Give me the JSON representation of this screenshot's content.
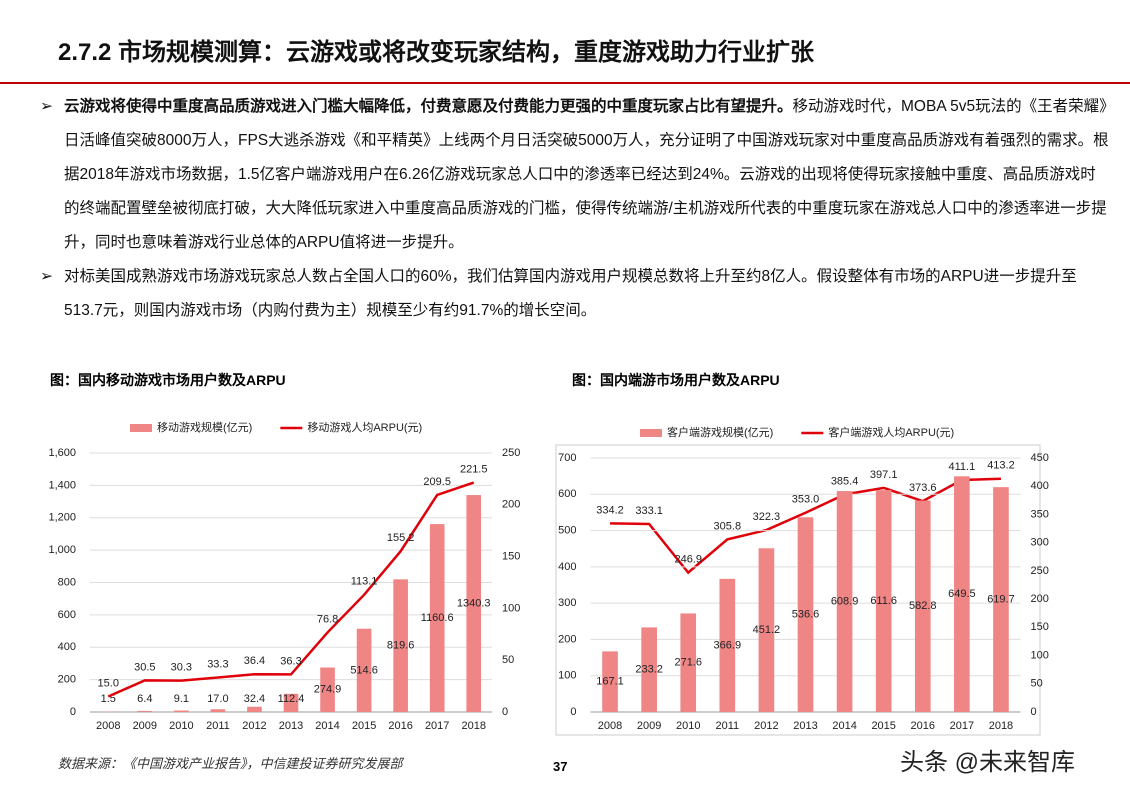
{
  "header": {
    "title": "2.7.2 市场规模测算：云游戏或将改变玩家结构，重度游戏助力行业扩张"
  },
  "bullets": [
    {
      "bold": "云游戏将使得中重度高品质游戏进入门槛大幅降低，付费意愿及付费能力更强的中重度玩家占比有望提升。",
      "text": "移动游戏时代，MOBA 5v5玩法的《王者荣耀》日活峰值突破8000万人，FPS大逃杀游戏《和平精英》上线两个月日活突破5000万人，充分证明了中国游戏玩家对中重度高品质游戏有着强烈的需求。根据2018年游戏市场数据，1.5亿客户端游戏用户在6.26亿游戏玩家总人口中的渗透率已经达到24%。云游戏的出现将使得玩家接触中重度、高品质游戏时的终端配置壁垒被彻底打破，大大降低玩家进入中重度高品质游戏的门槛，使得传统端游/主机游戏所代表的中重度玩家在游戏总人口中的渗透率进一步提升，同时也意味着游戏行业总体的ARPU值将进一步提升。"
    },
    {
      "text": "对标美国成熟游戏市场游戏玩家总人数占全国人口的60%，我们估算国内游戏用户规模总数将上升至约8亿人。假设整体有市场的ARPU进一步提升至513.7元，则国内游戏市场（内购付费为主）规模至少有约91.7%的增长空间。"
    }
  ],
  "chart_data": [
    {
      "type": "bar-line",
      "title": "图：国内移动游戏市场用户数及ARPU",
      "categories": [
        "2008",
        "2009",
        "2010",
        "2011",
        "2012",
        "2013",
        "2014",
        "2015",
        "2016",
        "2017",
        "2018"
      ],
      "series": [
        {
          "name": "移动游戏规模(亿元)",
          "type": "bar",
          "color": "#f08585",
          "values": [
            1.5,
            6.4,
            9.1,
            17.0,
            32.4,
            112.4,
            274.9,
            514.6,
            819.6,
            1160.6,
            1340.3
          ],
          "value_labels": [
            "1.5",
            "6.4",
            "9.1",
            "17.0",
            "32.4",
            "112.4",
            "274.9",
            "514.6",
            "819.6",
            "1160.6",
            "1340.3"
          ]
        },
        {
          "name": "移动游戏人均ARPU(元)",
          "type": "line",
          "axis": "y2",
          "color": "#e0000a",
          "values": [
            15.0,
            30.5,
            30.3,
            33.3,
            36.4,
            36.3,
            76.8,
            113.1,
            155.2,
            209.5,
            221.5
          ],
          "value_labels": [
            "15.0",
            "30.5",
            "30.3",
            "33.3",
            "36.4",
            "36.3",
            "76.8",
            "113.1",
            "155.2",
            "209.5",
            "221.5"
          ]
        }
      ],
      "ylim": [
        0,
        1600
      ],
      "yticks": [
        0,
        200,
        400,
        600,
        800,
        {
          "value": 1000,
          "label": "1,000"
        },
        {
          "value": 1200,
          "label": "1,200"
        },
        {
          "value": 1400,
          "label": "1,400"
        },
        {
          "value": 1600,
          "label": "1,600"
        }
      ],
      "y2lim": [
        0,
        250
      ],
      "y2ticks": [
        0,
        50,
        100,
        150,
        200,
        250
      ],
      "grid": true
    },
    {
      "type": "bar-line",
      "title": "图：国内端游市场用户数及ARPU",
      "categories": [
        "2008",
        "2009",
        "2010",
        "2011",
        "2012",
        "2013",
        "2014",
        "2015",
        "2016",
        "2017",
        "2018"
      ],
      "series": [
        {
          "name": "客户端游戏规模(亿元)",
          "type": "bar",
          "color": "#f08585",
          "values": [
            167.1,
            233.2,
            271.6,
            366.9,
            451.2,
            536.6,
            608.9,
            611.6,
            582.8,
            649.5,
            619.7
          ],
          "value_labels": [
            "167.1",
            "233.2",
            "271.6",
            "366.9",
            "451.2",
            "536.6",
            "608.9",
            "611.6",
            "582.8",
            "649.5",
            "619.7"
          ]
        },
        {
          "name": "客户端游戏人均ARPU(元)",
          "type": "line",
          "axis": "y2",
          "color": "#e0000a",
          "values": [
            334.2,
            333.1,
            246.9,
            305.8,
            322.3,
            353.0,
            385.4,
            397.1,
            373.6,
            411.1,
            413.2
          ],
          "value_labels": [
            "334.2",
            "333.1",
            "246.9",
            "305.8",
            "322.3",
            "353.0",
            "385.4",
            "397.1",
            "373.6",
            "411.1",
            "413.2"
          ]
        }
      ],
      "ylim": [
        0,
        700
      ],
      "yticks": [
        0,
        100,
        200,
        300,
        400,
        500,
        600,
        700
      ],
      "y2lim": [
        0,
        450
      ],
      "y2ticks": [
        0,
        50,
        100,
        150,
        200,
        250,
        300,
        350,
        400,
        450
      ],
      "grid": true
    }
  ],
  "footer": {
    "source": "数据来源：《中国游戏产业报告》，中信建投证券研究发展部",
    "page": "37",
    "watermark": "头条 @未来智库"
  }
}
